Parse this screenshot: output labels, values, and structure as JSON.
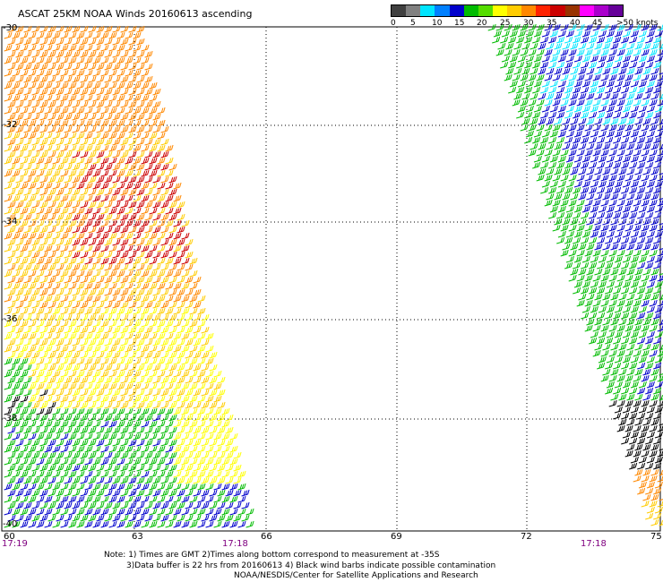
{
  "title": "ASCAT 25KM NOAA Winds 20160613 ascending",
  "colorbar": {
    "colors": [
      "#404040",
      "#808080",
      "#00e5ff",
      "#0080ff",
      "#0000cc",
      "#00bb00",
      "#55dd00",
      "#ffff00",
      "#ffcc00",
      "#ff8800",
      "#ff2200",
      "#cc0000",
      "#993300",
      "#ff00ff",
      "#aa00cc",
      "#660099"
    ],
    "labels": [
      "0",
      "5",
      "10",
      "15",
      "20",
      "25",
      "30",
      "35",
      "40",
      "45",
      ">50 knots"
    ]
  },
  "map": {
    "lat_labels": [
      "-30",
      "-32",
      "-34",
      "-36",
      "-38",
      "-40"
    ],
    "lon_labels": [
      "60",
      "63",
      "66",
      "69",
      "72",
      "75"
    ],
    "time_labels": [
      "17:19",
      "17:18",
      "17:18"
    ],
    "wind_speed_colors": {
      "0-5": "#404040",
      "5-10": "#00e5ff",
      "10-15": "#0000cc",
      "15-20": "#00bb00",
      "20-25": "#ffff00",
      "25-30": "#ffcc00",
      "30-35": "#ff8800",
      "35-40": "#cc0000",
      "contaminated": "#000000"
    }
  },
  "notes": {
    "line1": "Note: 1) Times are GMT 2)Times along bottom correspond to measurement at -35S",
    "line2": "3)Data buffer is 22 hrs from 20160613 4) Black wind barbs indicate possible contamination",
    "line3": "NOAA/NESDIS/Center for Satellite Applications and Research"
  }
}
